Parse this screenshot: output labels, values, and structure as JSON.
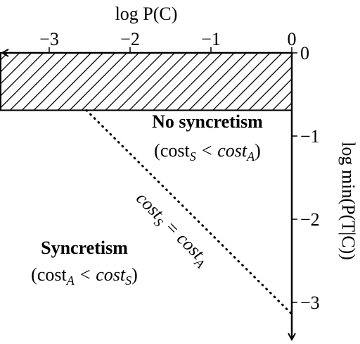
{
  "chart_data": {
    "type": "region",
    "xlabel": "log P(C)",
    "ylabel": "log min(P(T|C))",
    "xlim": [
      -3.6,
      0
    ],
    "ylim": [
      -3.43,
      0
    ],
    "xticks": [
      {
        "value": -3,
        "label": "−3"
      },
      {
        "value": -2,
        "label": "−2"
      },
      {
        "value": -1,
        "label": "−1"
      },
      0
    ],
    "yticks": [
      0,
      {
        "value": -1,
        "label": "−1"
      },
      {
        "value": -2,
        "label": "−2"
      },
      {
        "value": -3,
        "label": "−3"
      }
    ],
    "region": {
      "x": [
        -3.6,
        0
      ],
      "y": [
        -0.69,
        0
      ]
    },
    "boundary": {
      "x": [
        -2.54,
        0
      ],
      "y": [
        -0.69,
        -3.14
      ],
      "parts": [
        "cost",
        "S",
        " = cost",
        "A"
      ]
    },
    "annotations": [
      {
        "title": "No syncretism",
        "parts": [
          "(cost",
          "S",
          " < cost",
          "A",
          ")"
        ]
      },
      {
        "title": "Syncretism",
        "parts": [
          "(cost",
          "A",
          " < cost",
          "S",
          ")"
        ]
      }
    ]
  }
}
